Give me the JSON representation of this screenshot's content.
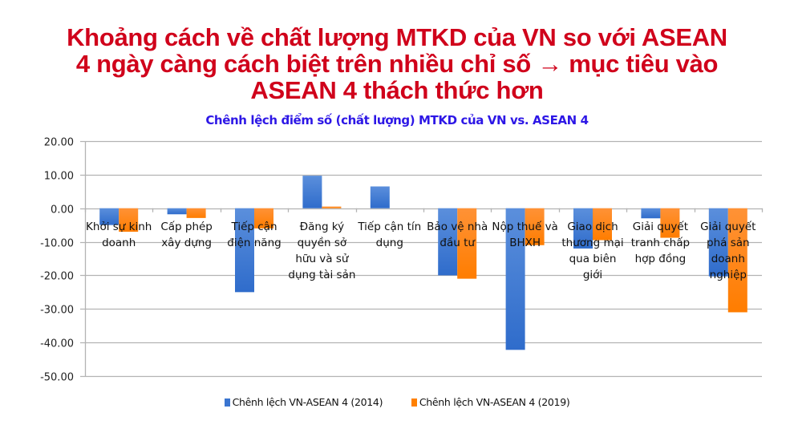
{
  "headline": {
    "line1": "Khoảng cách về chất lượng MTKD của VN so với ASEAN",
    "line2": "4 ngày càng cách biệt trên nhiều chỉ số → mục tiêu vào",
    "line3": "ASEAN 4 thách thức hơn",
    "color": "#d0021b"
  },
  "chart_data": {
    "type": "bar",
    "title": "Chênh lệch điểm số (chất lượng) MTKD của VN vs. ASEAN 4",
    "xlabel": "",
    "ylabel": "",
    "ylim": [
      -50,
      20
    ],
    "yticks": [
      "20.00",
      "10.00",
      "0.00",
      "-10.00",
      "-20.00",
      "-30.00",
      "-40.00",
      "-50.00"
    ],
    "grid": true,
    "legend_position": "bottom",
    "categories": [
      "Khởi sự kinh doanh",
      "Cấp phép xây dựng",
      "Tiếp cận điện năng",
      "Đăng ký quyền sở hữu và sử dụng tài sản",
      "Tiếp cận tín dụng",
      "Bảo vệ nhà đầu tư",
      "Nộp thuế và BHXH",
      "Giao dịch thương mại qua biên giới",
      "Giải quyết tranh chấp hợp đồng",
      "Giải quyết phá sản doanh nghiệp"
    ],
    "category_lines": [
      [
        "Khởi sự kinh",
        "doanh"
      ],
      [
        "Cấp phép",
        "xây dựng"
      ],
      [
        "Tiếp cận",
        "điện năng"
      ],
      [
        "Đăng ký",
        "quyền sở",
        "hữu và sử",
        "dụng tài sản"
      ],
      [
        "Tiếp cận tín",
        "dụng"
      ],
      [
        "Bảo vệ nhà",
        "đầu tư"
      ],
      [
        "Nộp thuế và",
        "BHXH"
      ],
      [
        "Giao dịch",
        "thương mại",
        "qua biên",
        "giới"
      ],
      [
        "Giải quyết",
        "tranh chấp",
        "hợp đồng"
      ],
      [
        "Giải quyết",
        "phá sản",
        "doanh",
        "nghiệp"
      ]
    ],
    "series": [
      {
        "name": "Chênh lệch VN-ASEAN 4 (2014)",
        "color": "#3a75d0",
        "values": [
          -5.0,
          -1.8,
          -25.0,
          9.7,
          6.5,
          -20.0,
          -42.2,
          -12.0,
          -3.0,
          -20.3
        ]
      },
      {
        "name": "Chênh lệch VN-ASEAN 4 (2019)",
        "color": "#ff8000",
        "values": [
          -7.0,
          -2.9,
          -6.0,
          0.5,
          0.0,
          -21.0,
          -11.0,
          -9.5,
          -8.8,
          -31.0
        ]
      }
    ]
  }
}
